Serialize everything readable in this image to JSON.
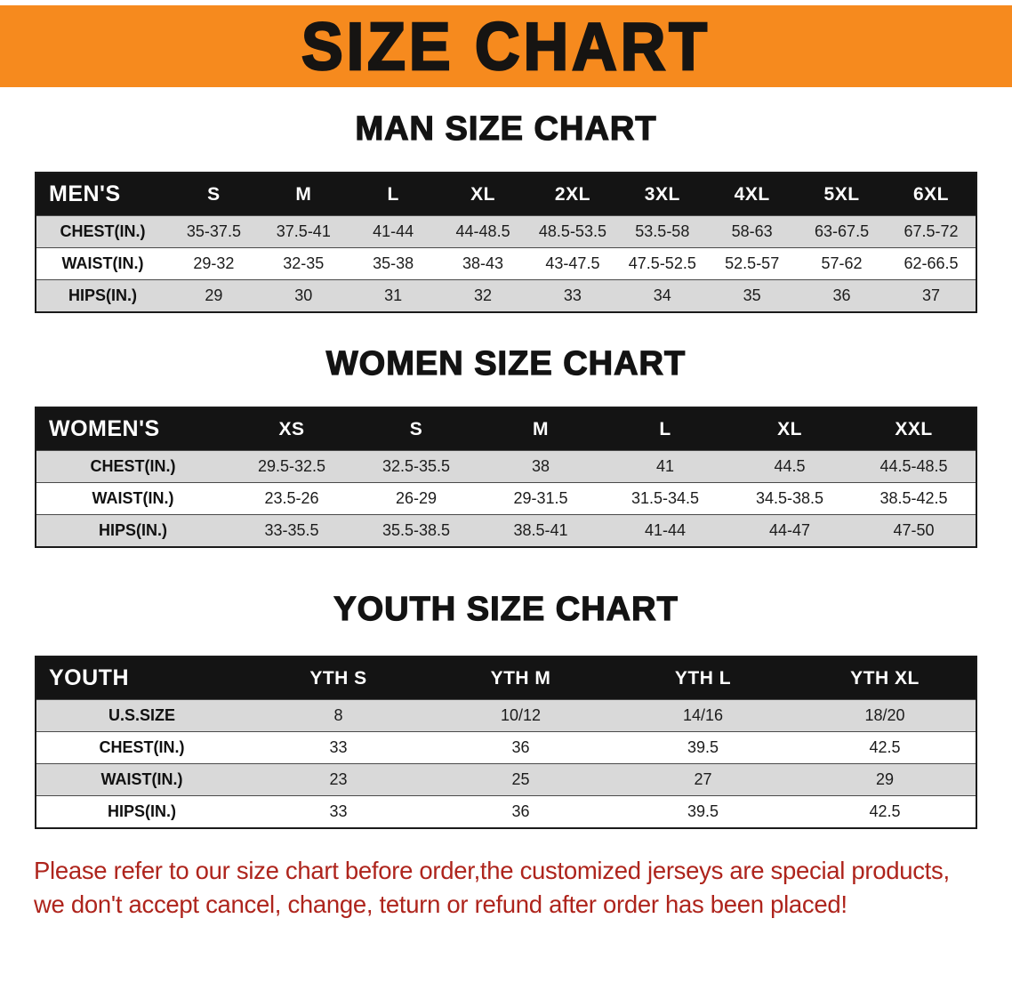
{
  "banner": {
    "title": "SIZE CHART"
  },
  "sections": {
    "man": {
      "title": "MAN SIZE CHART",
      "header": [
        "MEN'S",
        "S",
        "M",
        "L",
        "XL",
        "2XL",
        "3XL",
        "4XL",
        "5XL",
        "6XL"
      ],
      "rows": [
        [
          "CHEST(IN.)",
          "35-37.5",
          "37.5-41",
          "41-44",
          "44-48.5",
          "48.5-53.5",
          "53.5-58",
          "58-63",
          "63-67.5",
          "67.5-72"
        ],
        [
          "WAIST(IN.)",
          "29-32",
          "32-35",
          "35-38",
          "38-43",
          "43-47.5",
          "47.5-52.5",
          "52.5-57",
          "57-62",
          "62-66.5"
        ],
        [
          "HIPS(IN.)",
          "29",
          "30",
          "31",
          "32",
          "33",
          "34",
          "35",
          "36",
          "37"
        ]
      ]
    },
    "women": {
      "title": "WOMEN SIZE CHART",
      "header": [
        "WOMEN'S",
        "XS",
        "S",
        "M",
        "L",
        "XL",
        "XXL"
      ],
      "rows": [
        [
          "CHEST(IN.)",
          "29.5-32.5",
          "32.5-35.5",
          "38",
          "41",
          "44.5",
          "44.5-48.5"
        ],
        [
          "WAIST(IN.)",
          "23.5-26",
          "26-29",
          "29-31.5",
          "31.5-34.5",
          "34.5-38.5",
          "38.5-42.5"
        ],
        [
          "HIPS(IN.)",
          "33-35.5",
          "35.5-38.5",
          "38.5-41",
          "41-44",
          "44-47",
          "47-50"
        ]
      ]
    },
    "youth": {
      "title": "YOUTH SIZE CHART",
      "header": [
        "YOUTH",
        "YTH S",
        "YTH M",
        "YTH L",
        "YTH XL"
      ],
      "rows": [
        [
          "U.S.SIZE",
          "8",
          "10/12",
          "14/16",
          "18/20"
        ],
        [
          "CHEST(IN.)",
          "33",
          "36",
          "39.5",
          "42.5"
        ],
        [
          "WAIST(IN.)",
          "23",
          "25",
          "27",
          "29"
        ],
        [
          "HIPS(IN.)",
          "33",
          "36",
          "39.5",
          "42.5"
        ]
      ]
    }
  },
  "disclaimer": {
    "line1": "Please refer to our size chart before order,the customized jerseys are special products,",
    "line2": "we don't accept cancel, change, teturn or refund after order has been placed!"
  },
  "colors": {
    "banner_bg": "#f68a1e",
    "title_color": "#161412",
    "header_bg": "#141414",
    "row_stripe": "#d9d9d9",
    "row_plain": "#ffffff",
    "disclaimer_color": "#ae241c"
  }
}
